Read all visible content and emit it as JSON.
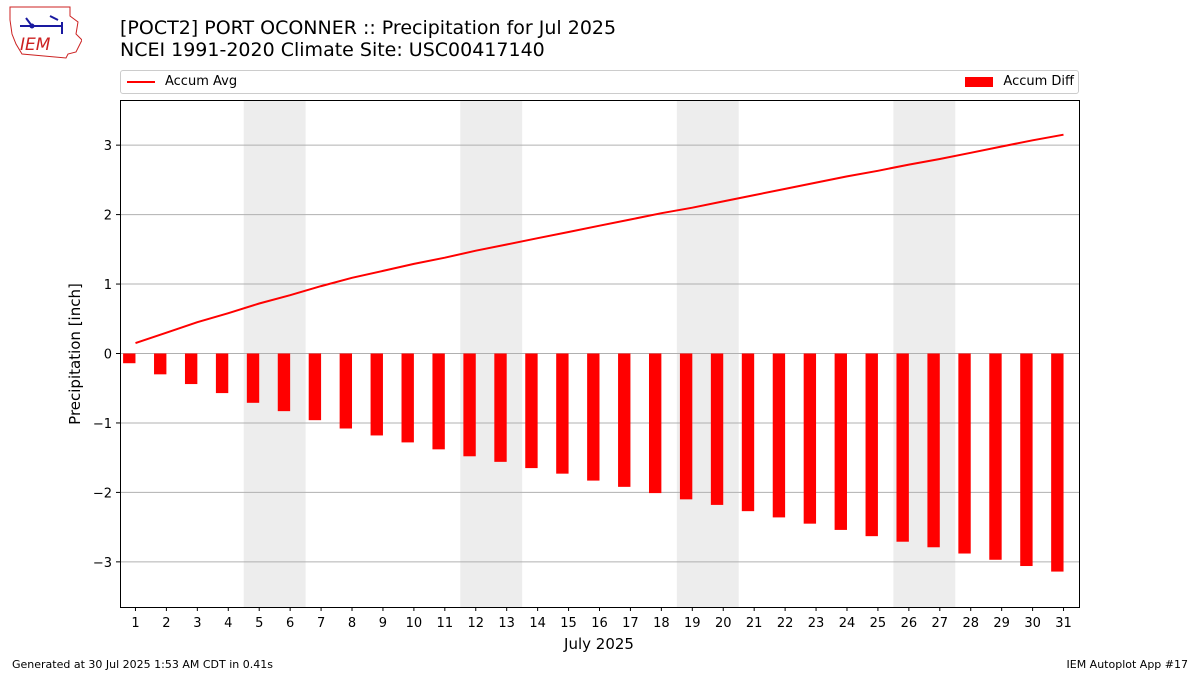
{
  "logo": {
    "text": "IEM"
  },
  "header": {
    "title_line1": "[POCT2] PORT OCONNER :: Precipitation for Jul 2025",
    "title_line2": "NCEI 1991-2020 Climate Site: USC00417140"
  },
  "legend": {
    "line_label": "Accum Avg",
    "bar_label": "Accum Diff"
  },
  "footer": {
    "left": "Generated at 30 Jul 2025 1:53 AM CDT in 0.41s",
    "right": "IEM Autoplot App #17"
  },
  "colors": {
    "series": "#ff0000",
    "weekend_band": "#ededed",
    "grid": "#b0b0b0"
  },
  "chart_data": {
    "type": "bar",
    "xlabel": "July 2025",
    "ylabel": "Precipitation [inch]",
    "ylim": [
      -3.65,
      3.65
    ],
    "yticks": [
      -3,
      -2,
      -1,
      0,
      1,
      2,
      3
    ],
    "ytick_labels": [
      "−3",
      "−2",
      "−1",
      "0",
      "1",
      "2",
      "3"
    ],
    "categories": [
      "1",
      "2",
      "3",
      "4",
      "5",
      "6",
      "7",
      "8",
      "9",
      "10",
      "11",
      "12",
      "13",
      "14",
      "15",
      "16",
      "17",
      "18",
      "19",
      "20",
      "21",
      "22",
      "23",
      "24",
      "25",
      "26",
      "27",
      "28",
      "29",
      "30",
      "31"
    ],
    "grid": "horizontal",
    "legend_placement": "top",
    "weekend_bands": [
      [
        5,
        6
      ],
      [
        12,
        13
      ],
      [
        19,
        20
      ],
      [
        26,
        27
      ]
    ],
    "series": [
      {
        "name": "Accum Avg",
        "type": "line",
        "values": [
          0.15,
          0.3,
          0.45,
          0.58,
          0.72,
          0.84,
          0.97,
          1.09,
          1.19,
          1.29,
          1.38,
          1.48,
          1.57,
          1.66,
          1.75,
          1.84,
          1.93,
          2.02,
          2.1,
          2.19,
          2.28,
          2.37,
          2.46,
          2.55,
          2.63,
          2.72,
          2.8,
          2.89,
          2.98,
          3.07,
          3.15
        ]
      },
      {
        "name": "Accum Diff",
        "type": "bar",
        "values": [
          -0.14,
          -0.3,
          -0.44,
          -0.57,
          -0.71,
          -0.83,
          -0.96,
          -1.08,
          -1.18,
          -1.28,
          -1.38,
          -1.48,
          -1.56,
          -1.65,
          -1.73,
          -1.83,
          -1.92,
          -2.01,
          -2.1,
          -2.18,
          -2.27,
          -2.36,
          -2.45,
          -2.54,
          -2.63,
          -2.71,
          -2.79,
          -2.88,
          -2.97,
          -3.06,
          -3.14
        ]
      }
    ]
  }
}
